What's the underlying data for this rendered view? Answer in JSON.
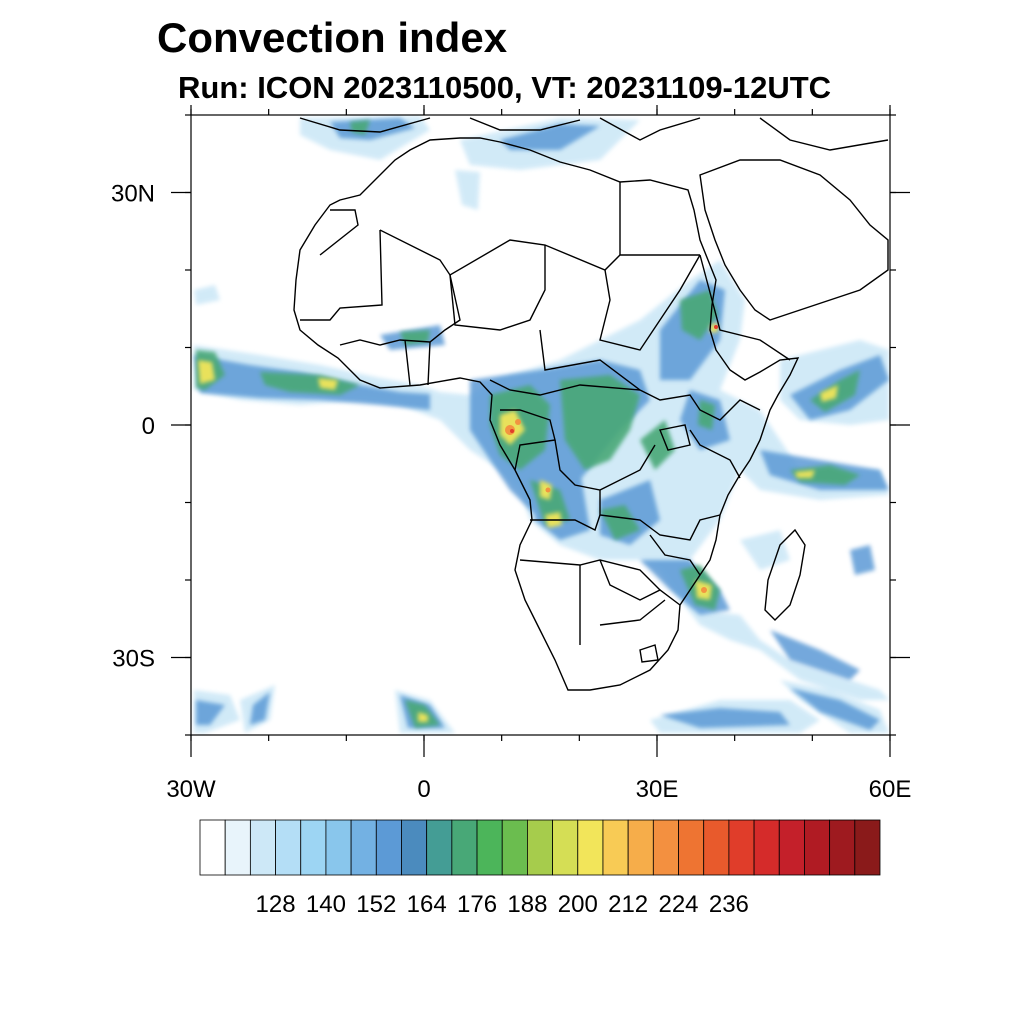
{
  "title": "Convection index",
  "subtitle": "Run: ICON 2023110500,  VT: 20231109-12UTC",
  "map": {
    "lon_range": [
      -30,
      60
    ],
    "lat_range": [
      -40,
      40
    ],
    "lat_ticks": [
      {
        "value": 30,
        "label": "30N"
      },
      {
        "value": 0,
        "label": "0"
      },
      {
        "value": -30,
        "label": "30S"
      }
    ],
    "lon_ticks": [
      {
        "value": -30,
        "label": "30W"
      },
      {
        "value": 0,
        "label": "0"
      },
      {
        "value": 30,
        "label": "30E"
      },
      {
        "value": 60,
        "label": "60E"
      }
    ]
  },
  "colorbar": {
    "labels": [
      "128",
      "140",
      "152",
      "164",
      "176",
      "188",
      "200",
      "212",
      "224",
      "236"
    ],
    "colors": [
      "#ffffff",
      "#e8f4fb",
      "#cde8f7",
      "#b4def6",
      "#9dd5f3",
      "#89c6ec",
      "#73b1e3",
      "#5c9ad6",
      "#4b8bbe",
      "#449d95",
      "#48a877",
      "#4cb55a",
      "#6bbd4f",
      "#a6cc4c",
      "#d5de55",
      "#f2e55a",
      "#f8cb55",
      "#f6ad4a",
      "#f39040",
      "#ee7432",
      "#e85a2c",
      "#e03d2a",
      "#d52b2a",
      "#c4202a",
      "#b01b23",
      "#9e1a1f",
      "#8a1a1a"
    ]
  }
}
